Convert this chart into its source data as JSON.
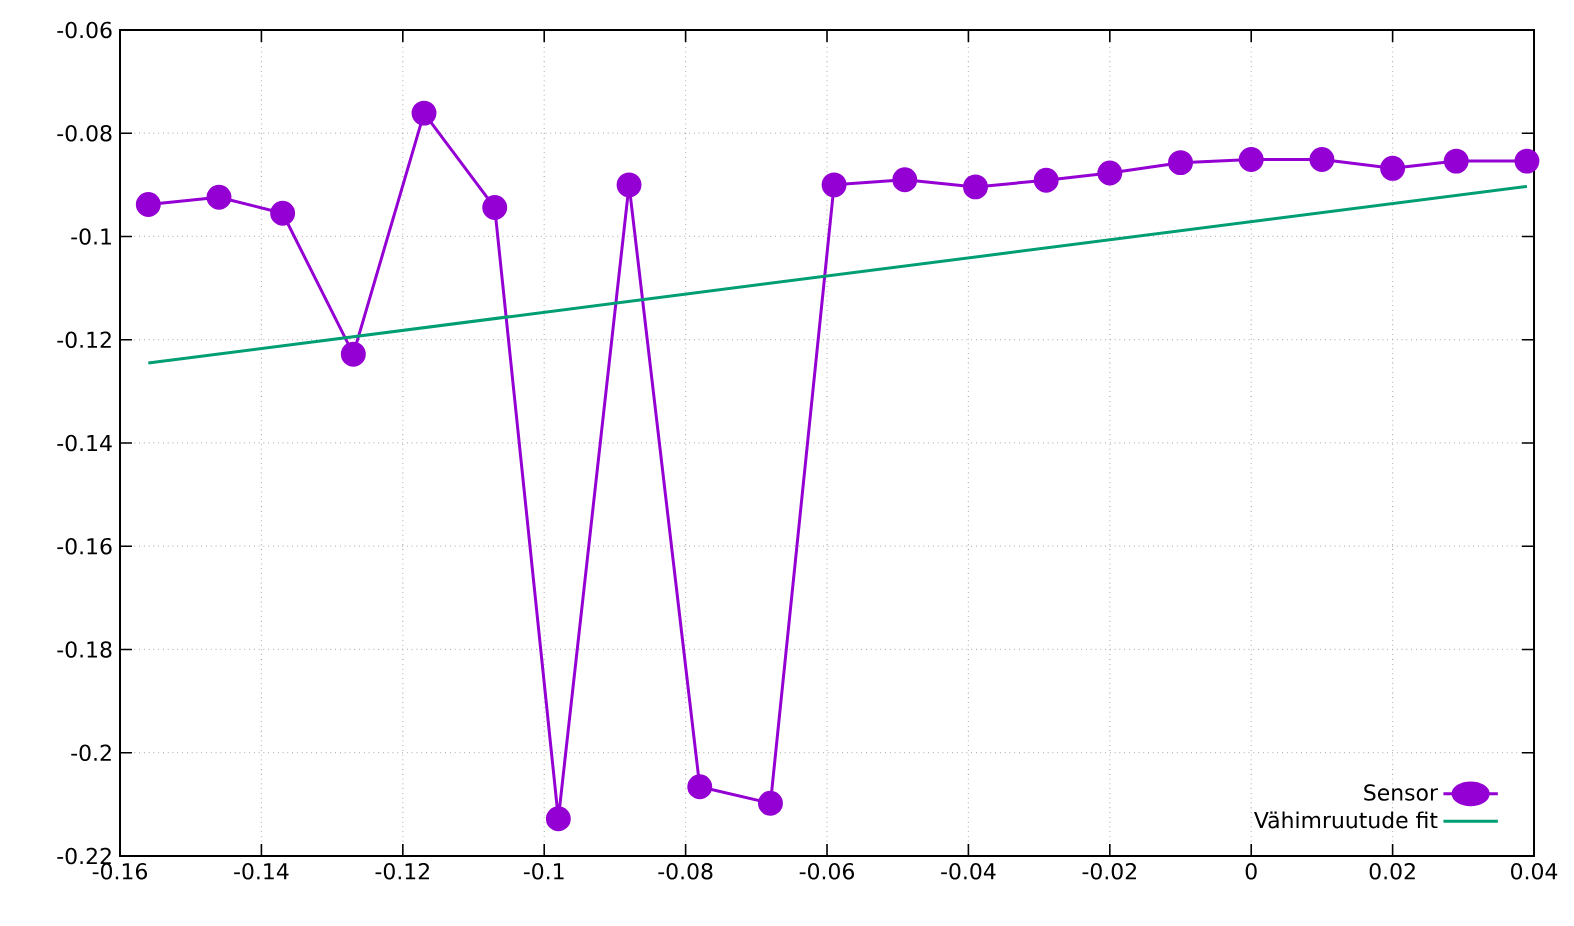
{
  "chart_data": {
    "type": "line",
    "xlim": [
      -0.16,
      0.04
    ],
    "ylim": [
      -0.22,
      -0.06
    ],
    "xticks": [
      -0.16,
      -0.14,
      -0.12,
      -0.1,
      -0.08,
      -0.06,
      -0.04,
      -0.02,
      0,
      0.02,
      0.04
    ],
    "yticks": [
      -0.22,
      -0.2,
      -0.18,
      -0.16,
      -0.14,
      -0.12,
      -0.1,
      -0.08,
      -0.06
    ],
    "grid": true,
    "legend": "bottom right",
    "series": [
      {
        "name": "Sensor",
        "color": "#9400d3",
        "marker": "circle",
        "x": [
          -0.156,
          -0.146,
          -0.137,
          -0.127,
          -0.117,
          -0.107,
          -0.098,
          -0.088,
          -0.078,
          -0.068,
          -0.059,
          -0.049,
          -0.039,
          -0.029,
          -0.02,
          -0.01,
          0.0,
          0.01,
          0.02,
          0.029,
          0.039
        ],
        "values": [
          -0.0938,
          -0.0924,
          -0.0955,
          -0.1228,
          -0.0761,
          -0.0944,
          -0.2128,
          -0.09,
          -0.2066,
          -0.2098,
          -0.09,
          -0.089,
          -0.0904,
          -0.0891,
          -0.0877,
          -0.0857,
          -0.0851,
          -0.0851,
          -0.0868,
          -0.0854,
          -0.0854
        ]
      },
      {
        "name": "Vähimruutude fit",
        "color": "#009e73",
        "marker": "none",
        "x": [
          -0.156,
          0.039
        ],
        "values": [
          -0.1245,
          -0.0903
        ]
      }
    ]
  }
}
